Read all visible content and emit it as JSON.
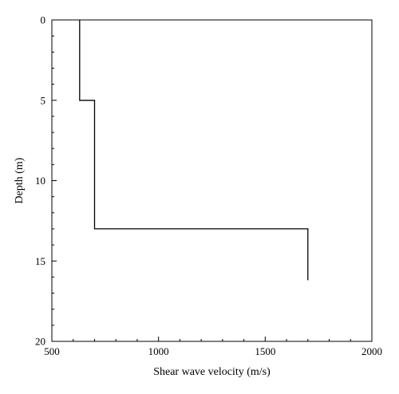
{
  "chart_data": {
    "type": "line",
    "xlabel": "Shear wave velocity (m/s)",
    "ylabel": "Depth (m)",
    "xlim": [
      500,
      2000
    ],
    "ylim": [
      0,
      20
    ],
    "y_inverted": true,
    "x_ticks": [
      500,
      1000,
      1500,
      2000
    ],
    "y_ticks": [
      0,
      5,
      10,
      15,
      20
    ],
    "x_tick_labels": [
      "500",
      "1000",
      "1500",
      "2000"
    ],
    "y_tick_labels": [
      "0",
      "5",
      "10",
      "15",
      "20"
    ],
    "x_minor_step": 100,
    "y_minor_step": 1,
    "grid": false,
    "series": [
      {
        "x": [
          630,
          630,
          700,
          700,
          1700,
          1700
        ],
        "y": [
          0,
          5,
          5,
          13,
          13,
          16.2
        ],
        "color": "#000000"
      }
    ]
  }
}
